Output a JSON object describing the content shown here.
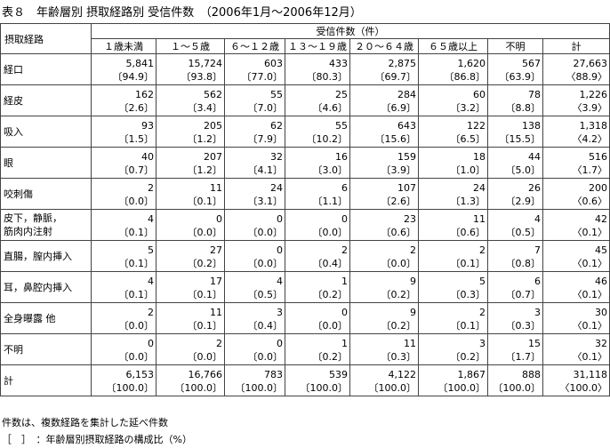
{
  "title": "表８　年齢層別 摂取経路別 受信件数　（2006年1月～2006年12月）",
  "table": {
    "row_header": "摂取経路",
    "group_header": "受信件数（件）",
    "columns": [
      "１歳未満",
      "１～５歳",
      "６～１２歳",
      "１３～１９歳",
      "２０～６４歳",
      "６５歳以上",
      "不明",
      "計"
    ],
    "rows": [
      {
        "label": [
          "経口"
        ],
        "counts": [
          "5,841",
          "15,724",
          "603",
          "433",
          "2,875",
          "1,620",
          "567",
          "27,663"
        ],
        "ratios": [
          "〔94.9〕",
          "〔93.8〕",
          "〔77.0〕",
          "〔80.3〕",
          "〔69.7〕",
          "〔86.8〕",
          "〔63.9〕",
          "〈88.9〉"
        ]
      },
      {
        "label": [
          "経皮"
        ],
        "counts": [
          "162",
          "562",
          "55",
          "25",
          "284",
          "60",
          "78",
          "1,226"
        ],
        "ratios": [
          "〔2.6〕",
          "〔3.4〕",
          "〔7.0〕",
          "〔4.6〕",
          "〔6.9〕",
          "〔3.2〕",
          "〔8.8〕",
          "〈3.9〉"
        ]
      },
      {
        "label": [
          "吸入"
        ],
        "counts": [
          "93",
          "205",
          "62",
          "55",
          "643",
          "122",
          "138",
          "1,318"
        ],
        "ratios": [
          "〔1.5〕",
          "〔1.2〕",
          "〔7.9〕",
          "〔10.2〕",
          "〔15.6〕",
          "〔6.5〕",
          "〔15.5〕",
          "〈4.2〉"
        ]
      },
      {
        "label": [
          "眼"
        ],
        "counts": [
          "40",
          "207",
          "32",
          "16",
          "159",
          "18",
          "44",
          "516"
        ],
        "ratios": [
          "〔0.7〕",
          "〔1.2〕",
          "〔4.1〕",
          "〔3.0〕",
          "〔3.9〕",
          "〔1.0〕",
          "〔5.0〕",
          "〈1.7〉"
        ]
      },
      {
        "label": [
          "咬刺傷"
        ],
        "counts": [
          "2",
          "11",
          "24",
          "6",
          "107",
          "24",
          "26",
          "200"
        ],
        "ratios": [
          "〔0.0〕",
          "〔0.1〕",
          "〔3.1〕",
          "〔1.1〕",
          "〔2.6〕",
          "〔1.3〕",
          "〔2.9〕",
          "〈0.6〉"
        ]
      },
      {
        "label": [
          "皮下，静脈，",
          "筋肉内注射"
        ],
        "counts": [
          "4",
          "0",
          "0",
          "0",
          "23",
          "11",
          "4",
          "42"
        ],
        "ratios": [
          "〔0.1〕",
          "〔0.0〕",
          "〔0.0〕",
          "〔0.0〕",
          "〔0.6〕",
          "〔0.6〕",
          "〔0.5〕",
          "〈0.1〉"
        ]
      },
      {
        "label": [
          "直腸，膣内挿入"
        ],
        "counts": [
          "5",
          "27",
          "0",
          "2",
          "2",
          "2",
          "7",
          "45"
        ],
        "ratios": [
          "〔0.1〕",
          "〔0.2〕",
          "〔0.0〕",
          "〔0.4〕",
          "〔0.0〕",
          "〔0.1〕",
          "〔0.8〕",
          "〈0.1〉"
        ]
      },
      {
        "label": [
          "耳，鼻腔内挿入"
        ],
        "counts": [
          "4",
          "17",
          "4",
          "1",
          "9",
          "5",
          "6",
          "46"
        ],
        "ratios": [
          "〔0.1〕",
          "〔0.1〕",
          "〔0.5〕",
          "〔0.2〕",
          "〔0.2〕",
          "〔0.3〕",
          "〔0.7〕",
          "〈0.1〉"
        ]
      },
      {
        "label": [
          "全身曝露 他"
        ],
        "counts": [
          "2",
          "11",
          "3",
          "0",
          "9",
          "2",
          "3",
          "30"
        ],
        "ratios": [
          "〔0.0〕",
          "〔0.1〕",
          "〔0.4〕",
          "〔0.0〕",
          "〔0.2〕",
          "〔0.1〕",
          "〔0.3〕",
          "〈0.1〉"
        ]
      },
      {
        "label": [
          "不明"
        ],
        "counts": [
          "0",
          "2",
          "0",
          "1",
          "11",
          "3",
          "15",
          "32"
        ],
        "ratios": [
          "〔0.0〕",
          "〔0.0〕",
          "〔0.0〕",
          "〔0.2〕",
          "〔0.3〕",
          "〔0.2〕",
          "〔1.7〕",
          "〈0.1〉"
        ]
      },
      {
        "label": [
          "計"
        ],
        "counts": [
          "6,153",
          "16,766",
          "783",
          "539",
          "4,122",
          "1,867",
          "888",
          "31,118"
        ],
        "ratios": [
          "〔100.0〕",
          "〔100.0〕",
          "〔100.0〕",
          "〔100.0〕",
          "〔100.0〕",
          "〔100.0〕",
          "〔100.0〕",
          "〈100.0〉"
        ]
      }
    ]
  },
  "notes": [
    "件数は、複数経路を集計した延べ件数",
    "［　］　：年齢層別摂取経路の構成比（%）"
  ]
}
